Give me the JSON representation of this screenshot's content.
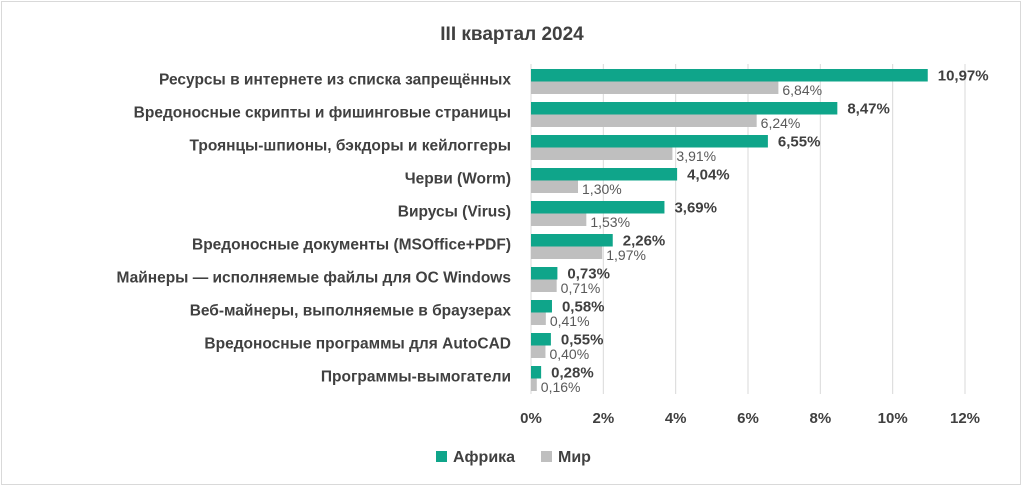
{
  "chart_data": {
    "type": "bar",
    "orientation": "horizontal",
    "title": "III квартал 2024",
    "categories": [
      "Ресурсы в интернете из списка запрещённых",
      "Вредоносные скрипты и фишинговые страницы",
      "Троянцы-шпионы, бэкдоры и кейлоггеры",
      "Черви (Worm)",
      "Вирусы (Virus)",
      "Вредоносные документы (MSOffice+PDF)",
      "Майнеры — исполняемые файлы для ОС Windows",
      "Веб-майнеры, выполняемые в браузерах",
      "Вредоносные программы для AutoCAD",
      "Программы-вымогатели"
    ],
    "series": [
      {
        "name": "Африка",
        "color": "#0fa58a",
        "values": [
          10.97,
          8.47,
          6.55,
          4.04,
          3.69,
          2.26,
          0.73,
          0.58,
          0.55,
          0.28
        ],
        "labels": [
          "10,97%",
          "8,47%",
          "6,55%",
          "4,04%",
          "3,69%",
          "2,26%",
          "0,73%",
          "0,58%",
          "0,55%",
          "0,28%"
        ]
      },
      {
        "name": "Мир",
        "color": "#bfbfbf",
        "values": [
          6.84,
          6.24,
          3.91,
          1.3,
          1.53,
          1.97,
          0.71,
          0.41,
          0.4,
          0.16
        ],
        "labels": [
          "6,84%",
          "6,24%",
          "3,91%",
          "1,30%",
          "1,53%",
          "1,97%",
          "0,71%",
          "0,41%",
          "0,40%",
          "0,16%"
        ]
      }
    ],
    "xlim": [
      0,
      12
    ],
    "xticks": [
      0,
      2,
      4,
      6,
      8,
      10,
      12
    ],
    "xtick_labels": [
      "0%",
      "2%",
      "4%",
      "6%",
      "8%",
      "10%",
      "12%"
    ],
    "grid": "vertical",
    "legend_position": "bottom",
    "text_color": "#404040",
    "grid_color": "#d9d9d9"
  }
}
